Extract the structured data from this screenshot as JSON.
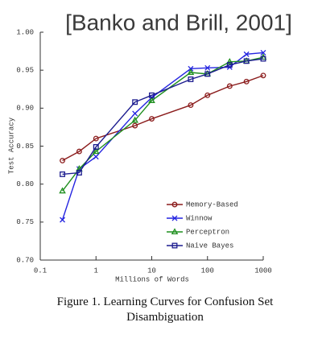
{
  "chart_data": {
    "type": "line",
    "title": "[Banko and Brill, 2001]",
    "xlabel": "Millions of Words",
    "ylabel": "Test Accuracy",
    "caption": "Figure 1. Learning Curves for Confusion Set Disambiguation",
    "xscale": "log",
    "x": [
      0.25,
      0.5,
      1,
      5,
      10,
      50,
      100,
      250,
      500,
      1000
    ],
    "series": [
      {
        "name": "Memory-Based",
        "color": "#8b1c1c",
        "marker": "circle",
        "values": [
          0.831,
          0.843,
          0.86,
          0.877,
          0.886,
          0.904,
          0.917,
          0.929,
          0.935,
          0.943
        ]
      },
      {
        "name": "Winnow",
        "color": "#2424e0",
        "marker": "x",
        "values": [
          0.753,
          0.82,
          0.836,
          0.893,
          0.914,
          0.952,
          0.953,
          0.954,
          0.971,
          0.973
        ]
      },
      {
        "name": "Perceptron",
        "color": "#1f8f1f",
        "marker": "triangle",
        "values": [
          0.791,
          0.82,
          0.843,
          0.884,
          0.91,
          0.947,
          0.945,
          0.961,
          0.962,
          0.967
        ]
      },
      {
        "name": "Naive Bayes",
        "color": "#1c1c8f",
        "marker": "square",
        "values": [
          0.813,
          0.815,
          0.849,
          0.908,
          0.917,
          0.938,
          0.945,
          0.957,
          0.962,
          0.965
        ]
      }
    ],
    "xlim": [
      0.1,
      1000
    ],
    "xticks": [
      0.1,
      1,
      10,
      100,
      1000
    ],
    "ylim": [
      0.7,
      1.0
    ],
    "yticks": [
      {
        "value": 0.7,
        "label": "0.70"
      },
      {
        "value": 0.75,
        "label": "0.75"
      },
      {
        "value": 0.8,
        "label": "0.80"
      },
      {
        "value": 0.85,
        "label": "0.85"
      },
      {
        "value": 0.9,
        "label": "0.90"
      },
      {
        "value": 0.95,
        "label": "0.95"
      },
      {
        "value": 1.0,
        "label": "1.00"
      }
    ],
    "legend": "lower right",
    "grid": false
  }
}
